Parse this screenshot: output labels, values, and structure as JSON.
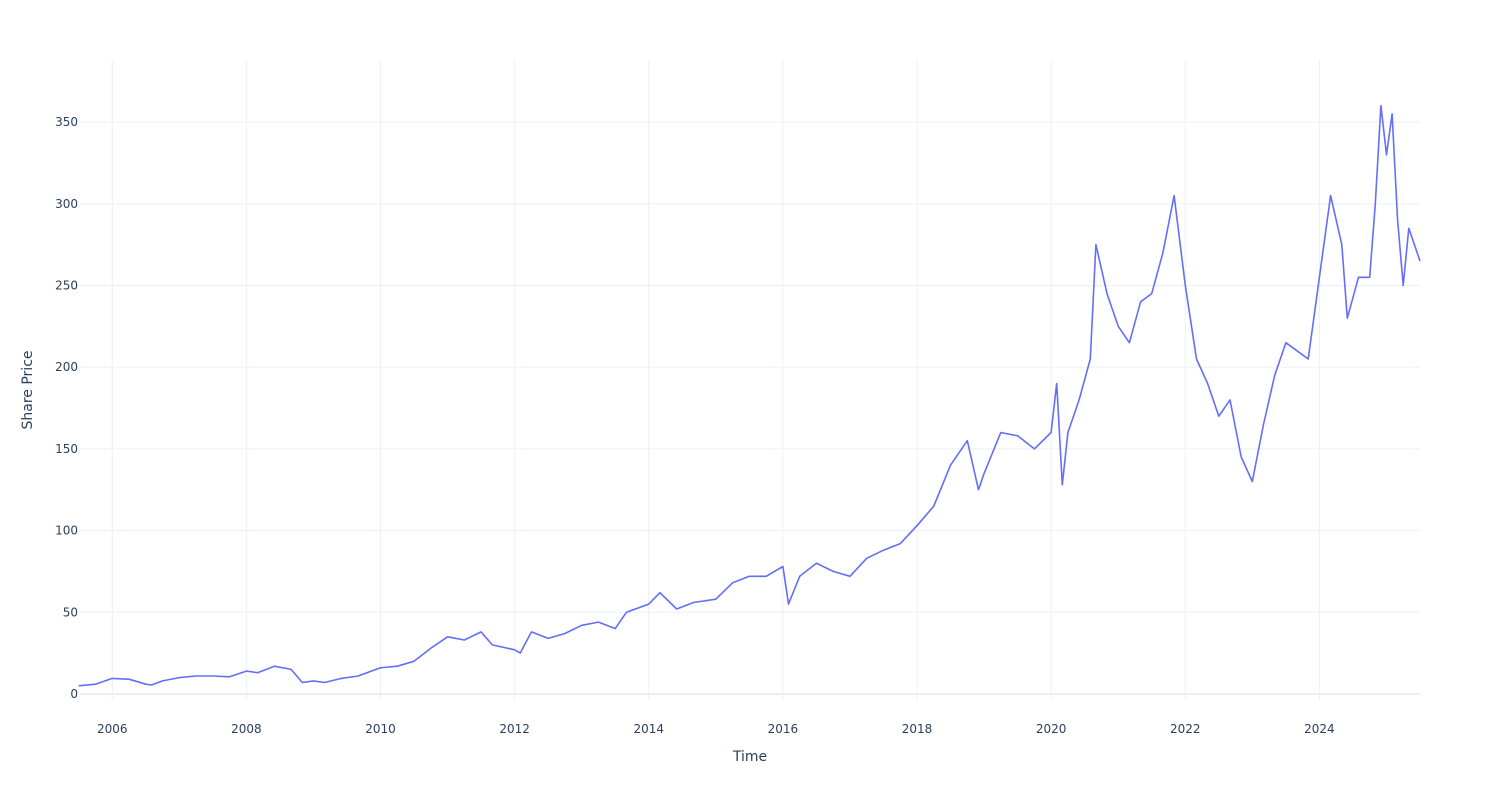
{
  "chart_data": {
    "type": "line",
    "title": "",
    "xlabel": "Time",
    "ylabel": "Share Price",
    "xlim": [
      "2005-07-08",
      "2025-07-01"
    ],
    "ylim": [
      -3.7,
      388
    ],
    "x_ticks": [
      "2006",
      "2008",
      "2010",
      "2012",
      "2014",
      "2016",
      "2018",
      "2020",
      "2022",
      "2024"
    ],
    "y_ticks": [
      0,
      50,
      100,
      150,
      200,
      250,
      300,
      350
    ],
    "grid": true,
    "legend": "none",
    "colors": {
      "line": "#636efa",
      "grid": "#ebf0f8",
      "text": "#2a3f5f"
    },
    "series": [
      {
        "x": [
          "2005-07",
          "2005-10",
          "2006-01",
          "2006-04",
          "2006-07",
          "2006-08",
          "2006-10",
          "2007-01",
          "2007-04",
          "2007-07",
          "2007-10",
          "2008-01",
          "2008-03",
          "2008-06",
          "2008-09",
          "2008-11",
          "2009-01",
          "2009-03",
          "2009-06",
          "2009-09",
          "2010-01",
          "2010-04",
          "2010-07",
          "2010-10",
          "2011-01",
          "2011-04",
          "2011-07",
          "2011-09",
          "2012-01",
          "2012-02",
          "2012-04",
          "2012-07",
          "2012-10",
          "2013-01",
          "2013-04",
          "2013-07",
          "2013-09",
          "2014-01",
          "2014-03",
          "2014-06",
          "2014-09",
          "2015-01",
          "2015-04",
          "2015-07",
          "2015-10",
          "2016-01",
          "2016-02",
          "2016-04",
          "2016-07",
          "2016-10",
          "2017-01",
          "2017-04",
          "2017-07",
          "2017-10",
          "2018-01",
          "2018-04",
          "2018-07",
          "2018-10",
          "2018-12",
          "2019-01",
          "2019-04",
          "2019-07",
          "2019-10",
          "2020-01",
          "2020-02",
          "2020-03",
          "2020-04",
          "2020-06",
          "2020-08",
          "2020-09",
          "2020-11",
          "2021-01",
          "2021-03",
          "2021-05",
          "2021-07",
          "2021-09",
          "2021-11",
          "2022-01",
          "2022-03",
          "2022-05",
          "2022-07",
          "2022-09",
          "2022-11",
          "2023-01",
          "2023-03",
          "2023-05",
          "2023-07",
          "2023-09",
          "2023-11",
          "2024-01",
          "2024-03",
          "2024-05",
          "2024-06",
          "2024-08",
          "2024-10",
          "2024-11",
          "2024-12",
          "2025-01",
          "2025-02",
          "2025-03",
          "2025-04",
          "2025-05",
          "2025-07"
        ],
        "y": [
          5,
          6,
          9.5,
          9,
          6,
          5.5,
          8,
          10,
          11,
          11,
          10.5,
          14,
          13,
          17,
          15,
          7,
          8,
          7,
          9.5,
          11,
          16,
          17,
          20,
          28,
          35,
          33,
          38,
          30,
          27,
          25,
          38,
          34,
          37,
          42,
          44,
          40,
          50,
          55,
          62,
          52,
          56,
          58,
          68,
          72,
          72,
          78,
          55,
          72,
          80,
          75,
          72,
          83,
          88,
          92,
          103,
          115,
          140,
          155,
          125,
          135,
          160,
          158,
          150,
          160,
          190,
          128,
          160,
          180,
          205,
          275,
          245,
          225,
          215,
          240,
          245,
          270,
          305,
          250,
          205,
          190,
          170,
          180,
          145,
          130,
          165,
          195,
          215,
          210,
          205,
          255,
          305,
          275,
          230,
          255,
          255,
          300,
          360,
          330,
          355,
          290,
          250,
          285,
          265
        ]
      }
    ]
  }
}
